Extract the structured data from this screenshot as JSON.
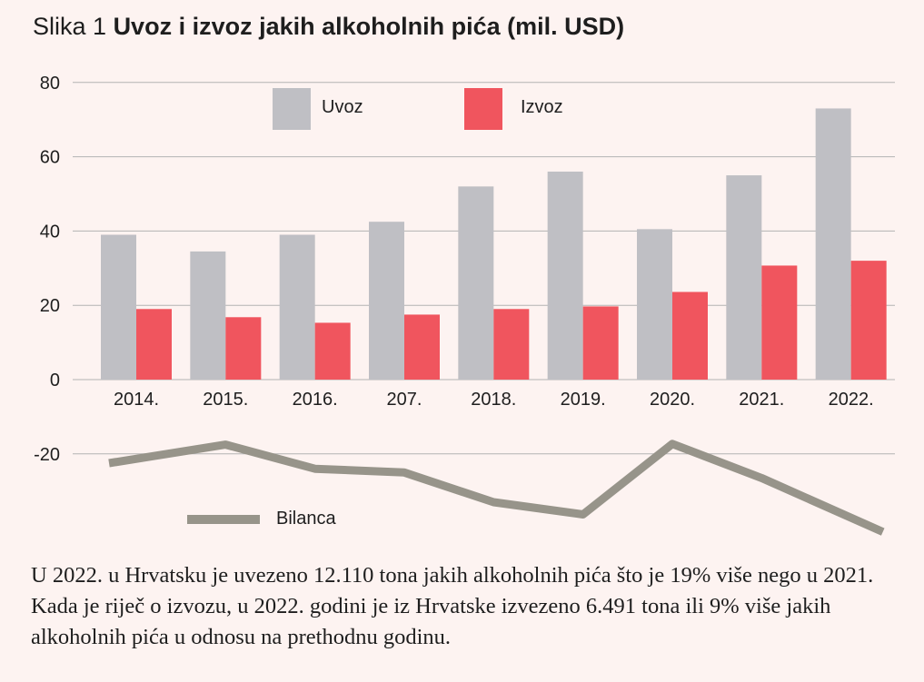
{
  "title": {
    "prefix": "Slika 1",
    "main": "Uvoz i izvoz jakih alkoholnih pića (mil. USD)"
  },
  "caption": "U 2022. u Hrvatsku je uvezeno 12.110 tona jakih alkoholnih pića što je 19% više nego u 2021. Kada je riječ o izvozu, u 2022. godini je iz Hrvatske izvezeno 6.491 tona ili 9% više jakih alkoholnih pića u odnosu na prethodnu godinu.",
  "colors": {
    "uvoz": "#bfbfc4",
    "izvoz": "#f0555e",
    "bilanca": "#97948a",
    "grid": "#b3b3b3"
  },
  "chart_data": {
    "type": "bar",
    "categories": [
      "2014.",
      "2015.",
      "2016.",
      "207.",
      "2018.",
      "2019.",
      "2020.",
      "2021.",
      "2022."
    ],
    "series": [
      {
        "name": "Uvoz",
        "type": "bar",
        "values": [
          39,
          34.5,
          39,
          42.5,
          52,
          56,
          40.5,
          55,
          73
        ]
      },
      {
        "name": "Izvoz",
        "type": "bar",
        "values": [
          19,
          16.8,
          15.3,
          17.5,
          19,
          19.7,
          23.6,
          30.7,
          32
        ]
      },
      {
        "name": "Bilanca",
        "type": "line",
        "values": [
          -22.5,
          -17.5,
          -24,
          -25,
          -33,
          -36.3,
          -17.3,
          -26.5,
          -41
        ]
      }
    ],
    "yticks": [
      80,
      60,
      40,
      20,
      0,
      -20
    ],
    "ylim": [
      -42,
      80
    ],
    "grid": true,
    "legend": "top-center, bottom-left"
  }
}
